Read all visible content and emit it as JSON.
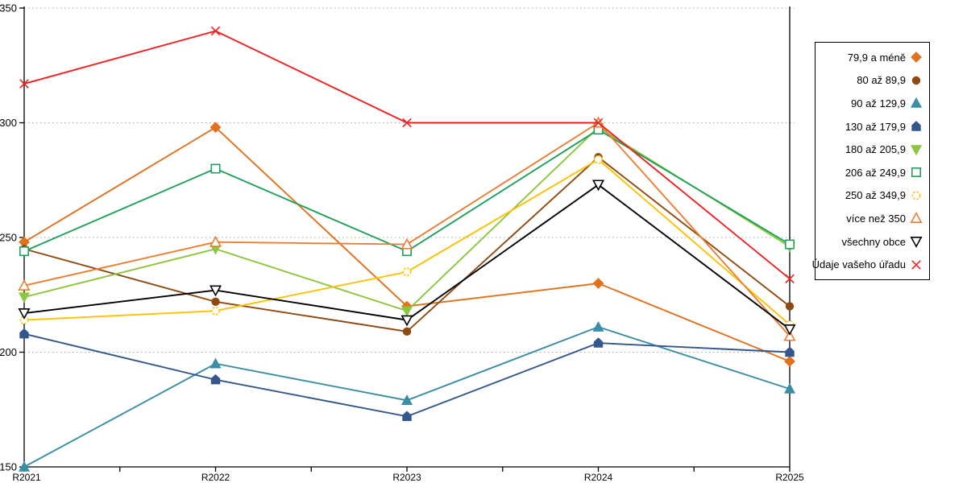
{
  "chart_data": {
    "type": "line",
    "title": "",
    "xlabel": "",
    "ylabel": "",
    "categories": [
      "R2021",
      "R2022",
      "R2023",
      "R2024",
      "R2025"
    ],
    "yticks": [
      150,
      200,
      250,
      300,
      350
    ],
    "ylim": [
      150,
      350
    ],
    "grid": "horizontal-dotted",
    "legend_position": "right",
    "series": [
      {
        "name": "79,9 a méně",
        "marker": "diamond",
        "filled": true,
        "color": "#E2711D",
        "values": [
          248,
          298,
          220,
          230,
          196
        ]
      },
      {
        "name": "80 až 89,9",
        "marker": "circle",
        "filled": true,
        "color": "#8E4A10",
        "values": [
          245,
          222,
          209,
          285,
          220
        ]
      },
      {
        "name": "90 až 129,9",
        "marker": "triangle-up",
        "filled": true,
        "color": "#3A8EA5",
        "values": [
          150,
          195,
          179,
          211,
          184
        ]
      },
      {
        "name": "130 až 179,9",
        "marker": "pentagon",
        "filled": true,
        "color": "#34568C",
        "values": [
          208,
          188,
          172,
          204,
          200
        ]
      },
      {
        "name": "180 až 205,9",
        "marker": "triangle-down",
        "filled": true,
        "color": "#8CC63E",
        "values": [
          224,
          245,
          218,
          298,
          246
        ]
      },
      {
        "name": "206 až 249,9",
        "marker": "square",
        "filled": false,
        "color": "#1FA05A",
        "values": [
          244,
          280,
          244,
          297,
          247
        ]
      },
      {
        "name": "250 až 349,9",
        "marker": "circle",
        "filled": false,
        "color": "#FFC000",
        "values": [
          214,
          218,
          235,
          284,
          212
        ]
      },
      {
        "name": "více než 350",
        "marker": "triangle-up",
        "filled": false,
        "color": "#ED7D31",
        "values": [
          229,
          248,
          247,
          300,
          207
        ]
      },
      {
        "name": "všechny obce",
        "marker": "triangle-down",
        "filled": false,
        "color": "#000000",
        "values": [
          217,
          227,
          214,
          273,
          210
        ]
      },
      {
        "name": "Údaje vašeho úřadu",
        "marker": "x",
        "filled": false,
        "color": "#F02020",
        "values": [
          317,
          340,
          300,
          300,
          232
        ]
      }
    ],
    "axis_color": "#000000",
    "gridline_color": "#A6A6A6",
    "tick_label_color": "#000000"
  }
}
